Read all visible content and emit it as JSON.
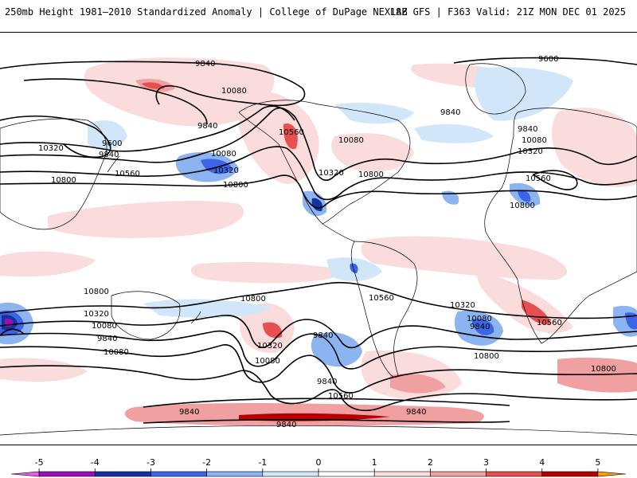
{
  "header": {
    "title_left": "250mb Height 1981–2010 Standardized Anomaly | College of DuPage NEXLAB",
    "title_right": "18Z GFS | F363 Valid: 21Z MON DEC 01 2025"
  },
  "map": {
    "projection": "global cylindrical equidistant",
    "contour_interval_m": 240,
    "contour_labels": [
      "9840",
      "10080",
      "9840",
      "10080",
      "9600",
      "10320",
      "9840",
      "10560",
      "10800",
      "10320",
      "10560",
      "10800",
      "10080",
      "10320",
      "10800",
      "9600",
      "9840",
      "9840",
      "10080",
      "10320",
      "10560",
      "10800",
      "10800",
      "10800",
      "10560",
      "10320",
      "10080",
      "9840",
      "10800",
      "10560",
      "10320",
      "10080",
      "9840",
      "10080",
      "9840",
      "9840",
      "10560",
      "10320",
      "10080",
      "10800",
      "9840",
      "9840",
      "9840",
      "9840"
    ],
    "colors": {
      "ocean_land_bg": "#ffffff",
      "coastline": "#000000",
      "contour": "#000000"
    }
  },
  "colorbar": {
    "ticks": [
      "-5",
      "-4",
      "-3",
      "-2",
      "-1",
      "0",
      "1",
      "2",
      "3",
      "4",
      "5"
    ],
    "bins": [
      {
        "from": -5.5,
        "to": -5,
        "color": "#e65ee6"
      },
      {
        "from": -5,
        "to": -4,
        "color": "#9610b4"
      },
      {
        "from": -4,
        "to": -3,
        "color": "#1432a0"
      },
      {
        "from": -3,
        "to": -2,
        "color": "#3c64e6"
      },
      {
        "from": -2,
        "to": -1,
        "color": "#8cb4f0"
      },
      {
        "from": -1,
        "to": 0,
        "color": "#d2e6fa"
      },
      {
        "from": 0,
        "to": 1,
        "color": "#ffffff"
      },
      {
        "from": 1,
        "to": 2,
        "color": "#fadcdc"
      },
      {
        "from": 2,
        "to": 3,
        "color": "#f0a0a0"
      },
      {
        "from": 3,
        "to": 4,
        "color": "#e65050"
      },
      {
        "from": 4,
        "to": 5,
        "color": "#b40000"
      },
      {
        "from": 5,
        "to": 5.5,
        "color": "#ffa000"
      }
    ],
    "extra_color_high": "#ffd000"
  }
}
